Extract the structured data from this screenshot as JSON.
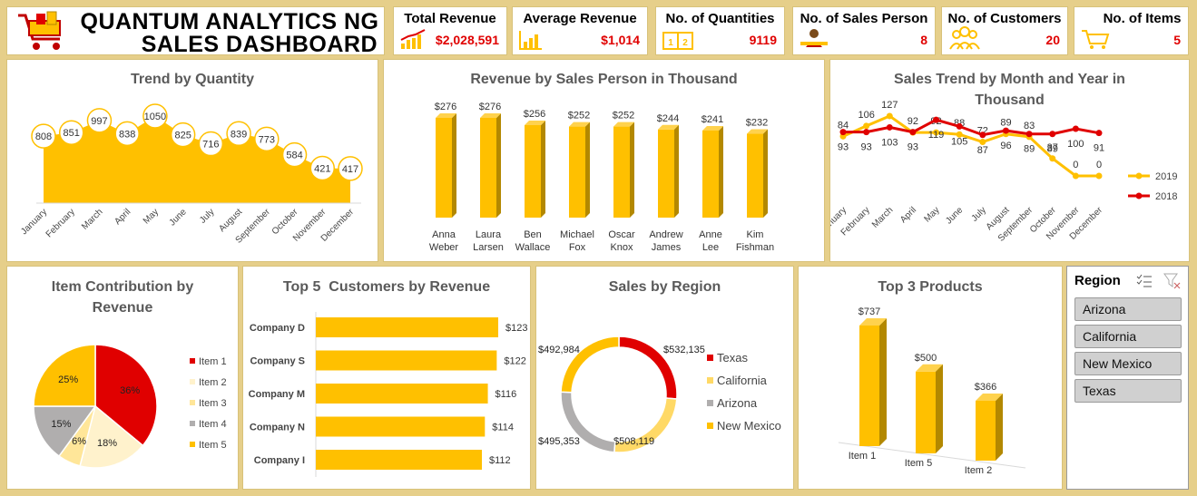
{
  "header": {
    "title_line1": "QUANTUM ANALYTICS NG",
    "title_line2": "SALES DASHBOARD",
    "logo_icon": "shopping-cart-icon"
  },
  "kpis": [
    {
      "label": "Total Revenue",
      "value": "$2,028,591",
      "icon": "revenue-chart-icon"
    },
    {
      "label": "Average Revenue",
      "value": "$1,014",
      "icon": "bar-growth-icon"
    },
    {
      "label": "No. of Quantities",
      "value": "9119",
      "icon": "quantity-icon"
    },
    {
      "label": "No. of Sales Person",
      "value": "8",
      "icon": "salesperson-icon"
    },
    {
      "label": "No. of Customers",
      "value": "20",
      "icon": "customers-icon"
    },
    {
      "label": "No. of Items",
      "value": "5",
      "icon": "cart-icon"
    }
  ],
  "colors": {
    "accent": "#ffc000",
    "red": "#e00000",
    "dark_gold": "#b38800",
    "light_gold": "#ffd966",
    "cream": "#fff2cc",
    "grey": "#b0aeae",
    "border": "#e6cf8a"
  },
  "chart_data": [
    {
      "id": "trend_by_quantity",
      "type": "area",
      "title": "Trend by Quantity",
      "categories": [
        "January",
        "February",
        "March",
        "April",
        "May",
        "June",
        "July",
        "August",
        "September",
        "October",
        "November",
        "December"
      ],
      "values": [
        808,
        851,
        997,
        838,
        1050,
        825,
        716,
        839,
        773,
        584,
        421,
        417
      ],
      "labels": [
        "808",
        "851",
        "997",
        "838",
        "1050",
        "825",
        "716",
        "839",
        "773",
        "584",
        "421",
        "417"
      ]
    },
    {
      "id": "revenue_by_sales_person",
      "type": "bar",
      "title": "Revenue by Sales Person in Thousand",
      "categories": [
        "Anna Weber",
        "Laura Larsen",
        "Ben Wallace",
        "Michael Fox",
        "Oscar Knox",
        "Andrew James",
        "Anne Lee",
        "Kim Fishman"
      ],
      "category_lines": [
        [
          "Anna",
          "Weber"
        ],
        [
          "Laura",
          "Larsen"
        ],
        [
          "Ben",
          "Wallace"
        ],
        [
          "Michael",
          "Fox"
        ],
        [
          "Oscar",
          "Knox"
        ],
        [
          "Andrew",
          "James"
        ],
        [
          "Anne",
          "Lee"
        ],
        [
          "Kim",
          "Fishman"
        ]
      ],
      "values": [
        276,
        276,
        256,
        252,
        252,
        244,
        241,
        232
      ],
      "labels": [
        "$276",
        "$276",
        "$256",
        "$252",
        "$252",
        "$244",
        "$241",
        "$232"
      ]
    },
    {
      "id": "sales_trend_month_year",
      "type": "line",
      "title_lines": [
        "Sales Trend by Month and Year in",
        "Thousand"
      ],
      "categories": [
        "January",
        "February",
        "March",
        "April",
        "May",
        "June",
        "July",
        "August",
        "September",
        "October",
        "November",
        "December"
      ],
      "series": [
        {
          "name": "2019",
          "values": [
            84,
            106,
            127,
            92,
            92,
            88,
            72,
            89,
            83,
            37,
            0,
            0
          ],
          "labels": [
            "84",
            "106",
            "127",
            "92",
            "92",
            "88",
            "72",
            "89",
            "83",
            "37",
            "0",
            "0"
          ],
          "color": "#ffc000"
        },
        {
          "name": "2018",
          "values": [
            93,
            93,
            103,
            93,
            119,
            105,
            87,
            96,
            89,
            89,
            100,
            91
          ],
          "labels": [
            "93",
            "93",
            "103",
            "93",
            "119",
            "105",
            "87",
            "96",
            "89",
            "89",
            "100",
            "91"
          ],
          "color": "#e00000"
        }
      ],
      "legend": "right"
    },
    {
      "id": "item_contribution",
      "type": "pie",
      "title_lines": [
        "Item Contribution by",
        "Revenue"
      ],
      "categories": [
        "Item 1",
        "Item 2",
        "Item 3",
        "Item 4",
        "Item 5"
      ],
      "values": [
        36,
        18,
        6,
        15,
        25
      ],
      "labels": [
        "36%",
        "18%",
        "6%",
        "15%",
        "25%"
      ],
      "colors": [
        "#e00000",
        "#fff2cc",
        "#ffe699",
        "#b0aeae",
        "#ffc000"
      ],
      "legend": "right"
    },
    {
      "id": "top5_customers",
      "type": "bar",
      "orientation": "horizontal",
      "title": "Top 5  Customers by Revenue",
      "categories": [
        "Company D",
        "Company S",
        "Company M",
        "Company N",
        "Company I"
      ],
      "values": [
        123,
        122,
        116,
        114,
        112
      ],
      "labels": [
        "$123",
        "$122",
        "$116",
        "$114",
        "$112"
      ]
    },
    {
      "id": "sales_by_region",
      "type": "pie",
      "subtype": "donut",
      "title": "Sales by Region",
      "categories": [
        "Texas",
        "California",
        "Arizona",
        "New Mexico"
      ],
      "values": [
        532135,
        508119,
        495353,
        492984
      ],
      "labels": [
        "$532,135",
        "$508,119",
        "$495,353",
        "$492,984"
      ],
      "colors": [
        "#e00000",
        "#ffd966",
        "#b0aeae",
        "#ffc000"
      ],
      "legend": "right"
    },
    {
      "id": "top3_products",
      "type": "bar",
      "title": "Top 3 Products",
      "categories": [
        "Item 1",
        "Item 5",
        "Item 2"
      ],
      "values": [
        737,
        500,
        366
      ],
      "labels": [
        "$737",
        "$500",
        "$366"
      ]
    }
  ],
  "slicer": {
    "title": "Region",
    "items": [
      "Arizona",
      "California",
      "New Mexico",
      "Texas"
    ]
  }
}
